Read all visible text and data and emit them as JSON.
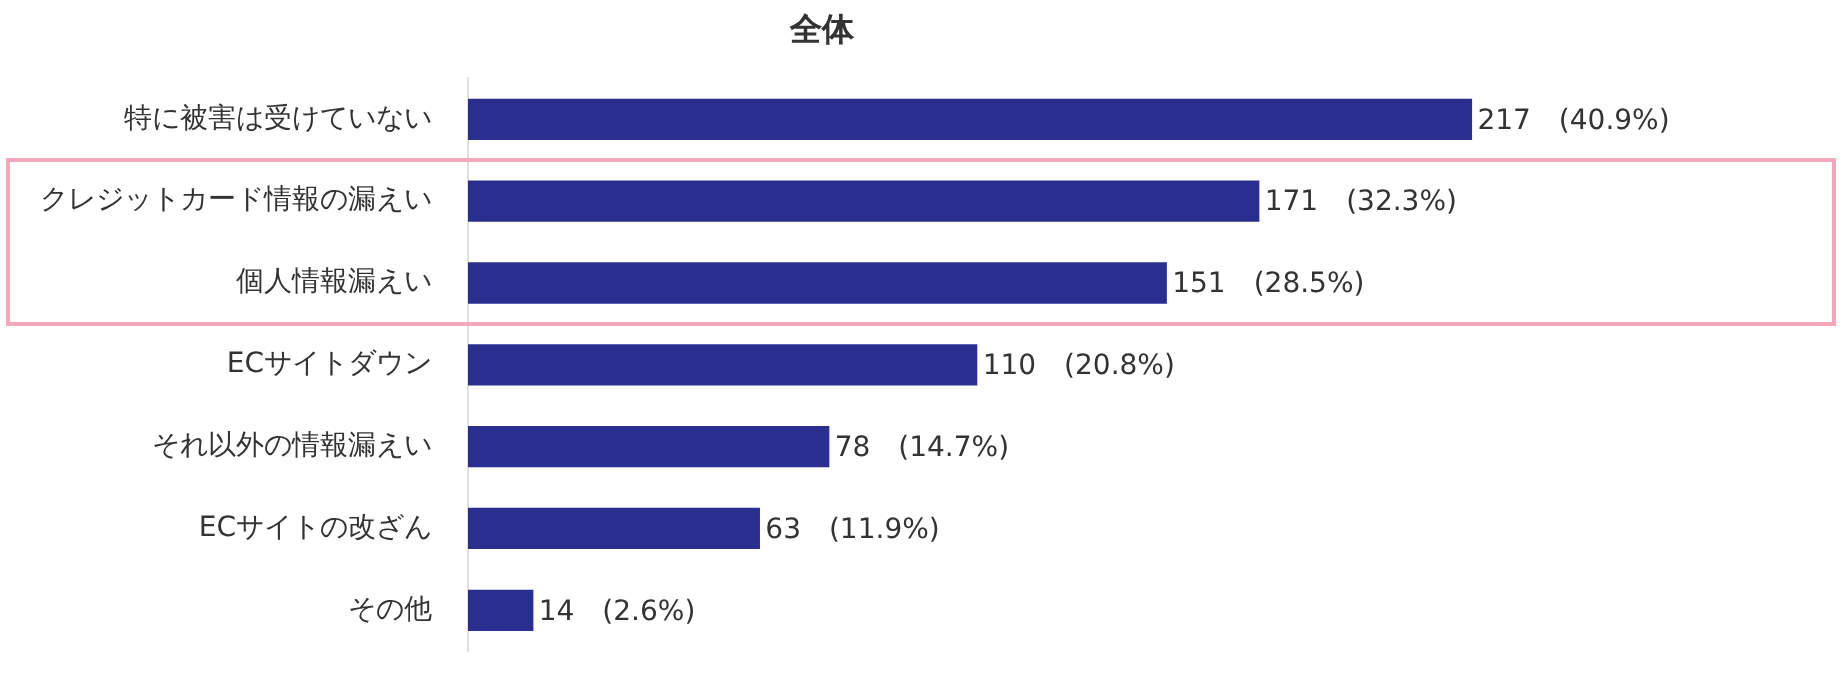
{
  "chart_data": {
    "type": "bar",
    "orientation": "horizontal",
    "title": "全体",
    "categories": [
      "特に被害は受けていない",
      "クレジットカード情報の漏えい",
      "個人情報漏えい",
      "ECサイトダウン",
      "それ以外の情報漏えい",
      "ECサイトの改ざん",
      "その他"
    ],
    "values": [
      217,
      171,
      151,
      110,
      78,
      63,
      14
    ],
    "color": "#2a2f8f",
    "value_labels": [
      "217　(40.9%)",
      "171　(32.3%)",
      "151　(28.5%)",
      "110　(20.8%)",
      "78　(14.7%)",
      "63　(11.9%)",
      "14　(2.6%)"
    ],
    "grid": false,
    "legend": false
  }
}
